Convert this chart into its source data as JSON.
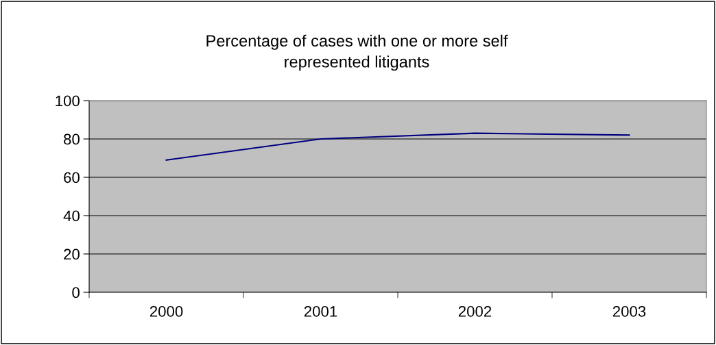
{
  "chart_data": {
    "type": "line",
    "title": "Percentage of cases with one or more self\nrepresented litigants",
    "categories": [
      "2000",
      "2001",
      "2002",
      "2003"
    ],
    "series": [
      {
        "color": "#000080",
        "values": [
          69,
          80,
          83,
          82
        ]
      }
    ],
    "ylim": [
      0,
      100
    ],
    "yticks": [
      0,
      20,
      40,
      60,
      80,
      100
    ],
    "grid": "y",
    "marker": "none",
    "line_style": "solid"
  }
}
